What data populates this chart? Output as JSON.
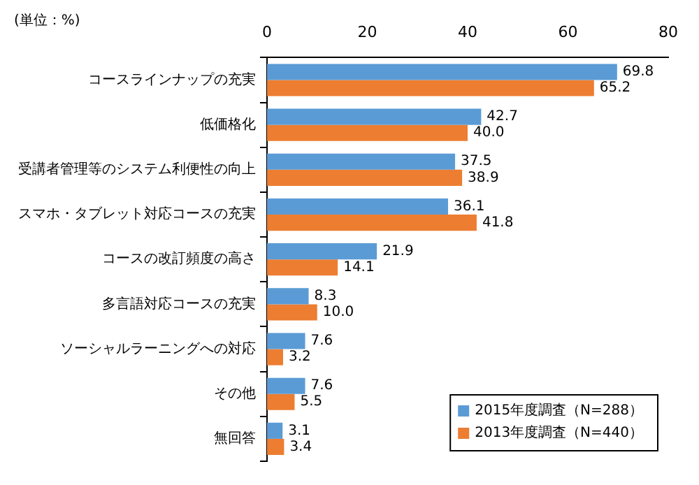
{
  "chart_data": {
    "type": "bar",
    "orientation": "horizontal",
    "categories": [
      "コースラインナップの充実",
      "低価格化",
      "受講者管理等のシステム利便性の向上",
      "スマホ・タブレット対応コースの充実",
      "コースの改訂頻度の高さ",
      "多言語対応コースの充実",
      "ソーシャルラーニングへの対応",
      "その他",
      "無回答"
    ],
    "series": [
      {
        "name": "2015年度調査（N=288）",
        "color": "#5b9bd5",
        "values": [
          69.8,
          42.7,
          37.5,
          36.1,
          21.9,
          8.3,
          7.6,
          7.6,
          3.1
        ],
        "value_labels": [
          "69.8",
          "42.7",
          "37.5",
          "36.1",
          "21.9",
          "8.3",
          "7.6",
          "7.6",
          "3.1"
        ]
      },
      {
        "name": "2013年度調査（N=440）",
        "color": "#ed7d31",
        "values": [
          65.2,
          40.0,
          38.9,
          41.8,
          14.1,
          10.0,
          3.2,
          5.5,
          3.4
        ],
        "value_labels": [
          "65.2",
          "40.0",
          "38.9",
          "41.8",
          "14.1",
          "10.0",
          "3.2",
          "5.5",
          "3.4"
        ]
      }
    ],
    "xlim": [
      0,
      80
    ],
    "xticks": [
      0,
      20,
      40,
      60,
      80
    ],
    "grid": false,
    "legend": "bottom right",
    "annotations": [
      "(単位：%)"
    ]
  }
}
